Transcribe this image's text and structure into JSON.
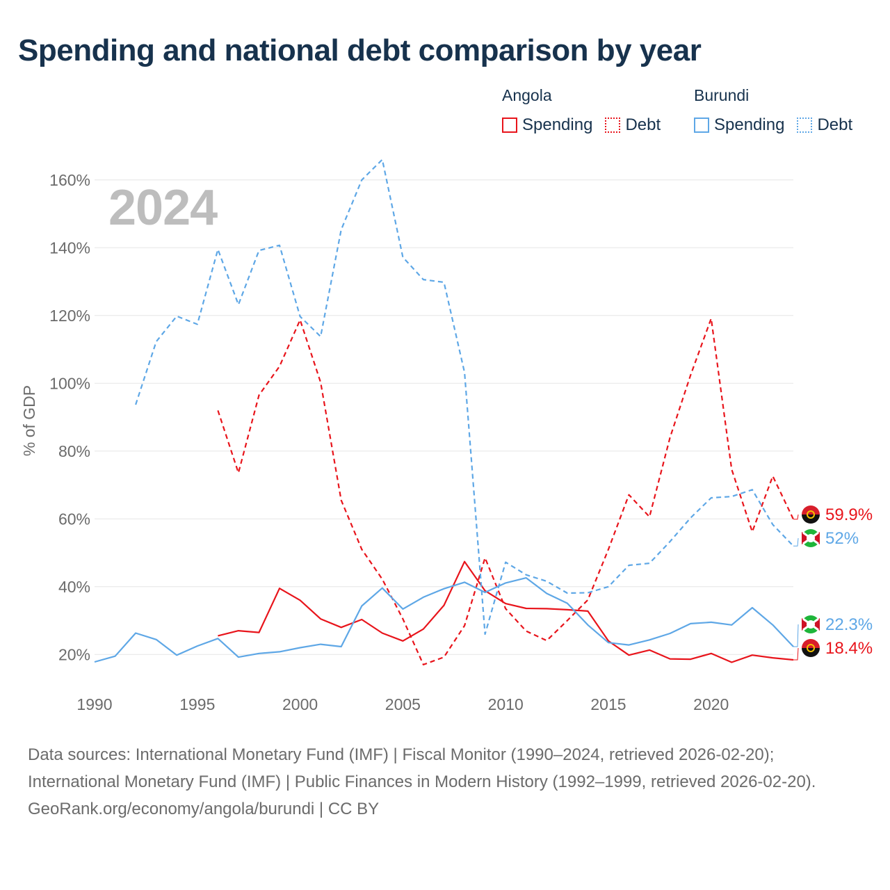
{
  "title": "Spending and national debt comparison by year",
  "year_label": "2024",
  "legend": {
    "groups": [
      {
        "name": "Angola",
        "spending_label": "Spending",
        "debt_label": "Debt",
        "color": "#e8141b"
      },
      {
        "name": "Burundi",
        "spending_label": "Spending",
        "debt_label": "Debt",
        "color": "#5ea7e6"
      }
    ]
  },
  "chart_data": {
    "type": "line",
    "ylabel": "% of GDP",
    "xlim": [
      1990,
      2024
    ],
    "ylim": [
      10,
      170
    ],
    "x_ticks": [
      1990,
      1995,
      2000,
      2005,
      2010,
      2015,
      2020
    ],
    "y_ticks": [
      20,
      40,
      60,
      80,
      100,
      120,
      140,
      160
    ],
    "y_tick_labels": [
      "20%",
      "40%",
      "60%",
      "80%",
      "100%",
      "120%",
      "140%",
      "160%"
    ],
    "series": [
      {
        "name": "Angola Spending",
        "color": "#e8141b",
        "dash": "solid",
        "end_label": "18.4%",
        "x": [
          1996,
          1997,
          1998,
          1999,
          2000,
          2001,
          2002,
          2003,
          2004,
          2005,
          2006,
          2007,
          2008,
          2009,
          2010,
          2011,
          2012,
          2013,
          2014,
          2015,
          2016,
          2017,
          2018,
          2019,
          2020,
          2021,
          2022,
          2023,
          2024
        ],
        "values": [
          25.5,
          27,
          26.5,
          39.5,
          36,
          30.5,
          28,
          30.3,
          26.3,
          24,
          27.5,
          34.5,
          47.4,
          38.8,
          35,
          33.6,
          33.5,
          33.2,
          32.8,
          24,
          19.8,
          21.3,
          18.7,
          18.6,
          20.3,
          17.7,
          19.8,
          19,
          18.4
        ]
      },
      {
        "name": "Angola Debt",
        "color": "#e8141b",
        "dash": "dashed",
        "end_label": "59.9%",
        "x": [
          1996,
          1997,
          1998,
          1999,
          2000,
          2001,
          2002,
          2003,
          2004,
          2005,
          2006,
          2007,
          2008,
          2009,
          2010,
          2011,
          2012,
          2013,
          2014,
          2015,
          2016,
          2017,
          2018,
          2019,
          2020,
          2021,
          2022,
          2023,
          2024
        ],
        "values": [
          92,
          73.6,
          96.5,
          105,
          118.7,
          100.3,
          65.5,
          51,
          42.2,
          30.5,
          17,
          19.2,
          28.5,
          48.5,
          33.5,
          26.9,
          24.1,
          30,
          36.1,
          51,
          67.1,
          60.6,
          84,
          102.4,
          119.1,
          74.6,
          56.2,
          72.6,
          59.9
        ]
      },
      {
        "name": "Burundi Spending",
        "color": "#5ea7e6",
        "dash": "solid",
        "end_label": "22.3%",
        "x": [
          1990,
          1991,
          1992,
          1993,
          1994,
          1995,
          1996,
          1997,
          1998,
          1999,
          2000,
          2001,
          2002,
          2003,
          2004,
          2005,
          2006,
          2007,
          2008,
          2009,
          2010,
          2011,
          2012,
          2013,
          2014,
          2015,
          2016,
          2017,
          2018,
          2019,
          2020,
          2021,
          2022,
          2023,
          2024
        ],
        "values": [
          17.8,
          19.5,
          26.3,
          24.4,
          19.8,
          22.5,
          24.7,
          19.2,
          20.3,
          20.8,
          22,
          23,
          22.3,
          34.3,
          39.6,
          33.4,
          36.9,
          39.4,
          41.3,
          38.3,
          41.1,
          42.6,
          38,
          35.1,
          28.7,
          23.5,
          22.8,
          24.3,
          26.2,
          29.1,
          29.5,
          28.7,
          33.8,
          28.7,
          22.3
        ]
      },
      {
        "name": "Burundi Debt",
        "color": "#5ea7e6",
        "dash": "dashed",
        "end_label": "52%",
        "x": [
          1992,
          1993,
          1994,
          1995,
          1996,
          1997,
          1998,
          1999,
          2000,
          2001,
          2002,
          2003,
          2004,
          2005,
          2006,
          2007,
          2008,
          2009,
          2010,
          2011,
          2012,
          2013,
          2014,
          2015,
          2016,
          2017,
          2018,
          2019,
          2020,
          2021,
          2022,
          2023,
          2024
        ],
        "values": [
          93.7,
          112.3,
          119.8,
          117.4,
          139.5,
          123.2,
          139.2,
          140.7,
          119.7,
          113.8,
          145.3,
          160,
          166,
          137.2,
          130.6,
          129.8,
          103.2,
          26,
          47.2,
          43.5,
          41.6,
          38.1,
          38.2,
          40,
          46.3,
          46.9,
          53.3,
          60.3,
          66.2,
          66.6,
          68.6,
          58.3,
          52
        ]
      }
    ]
  },
  "footer": {
    "sources": "Data sources: International Monetary Fund (IMF) | Fiscal Monitor (1990–2024, retrieved 2026-02-20); International Monetary Fund (IMF) | Public Finances in Modern History (1992–1999, retrieved 2026-02-20).",
    "credit": "GeoRank.org/economy/angola/burundi | CC BY"
  }
}
